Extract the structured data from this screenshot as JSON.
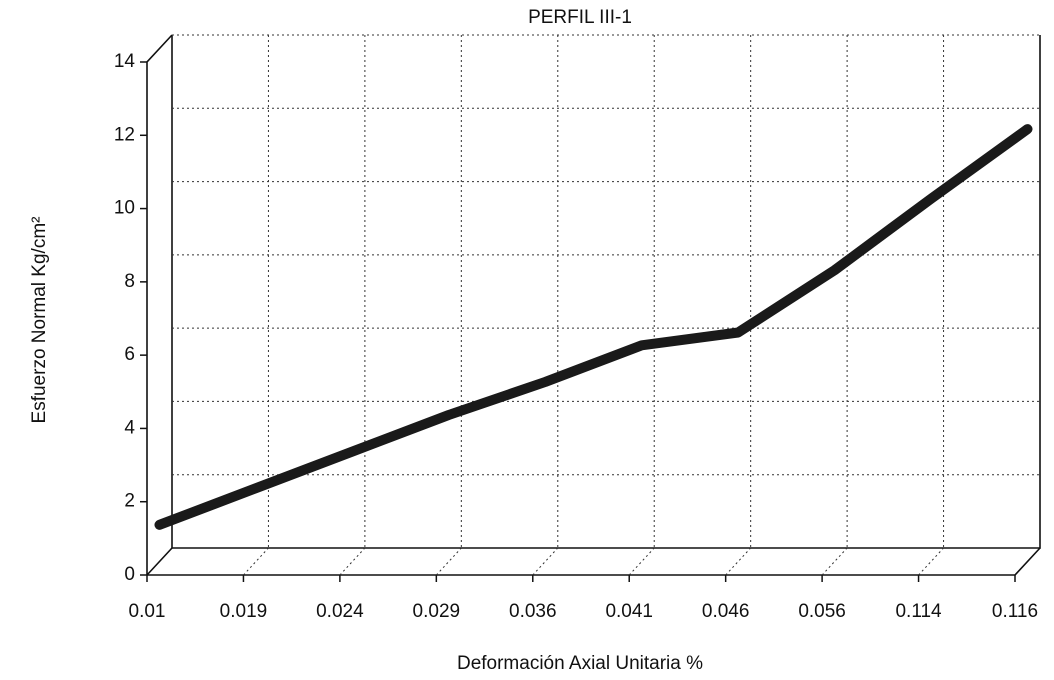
{
  "chart_data": {
    "type": "line",
    "title": "PERFIL III-1",
    "x_label": "Deformación Axial Unitaria  %",
    "y_label": "Esfuerzo Normal Kg/cm²",
    "categories": [
      "0.01",
      "0.019",
      "0.024",
      "0.029",
      "0.036",
      "0.041",
      "0.046",
      "0.056",
      "0.114",
      "0.116"
    ],
    "series": [
      {
        "name": "Esfuerzo",
        "color": "#1a1a1a",
        "values": [
          1.0,
          2.0,
          3.0,
          4.0,
          4.9,
          5.9,
          6.25,
          7.95,
          9.9,
          11.8
        ]
      }
    ],
    "ylim": [
      0,
      14
    ],
    "yticks": [
      0,
      2,
      4,
      6,
      8,
      10,
      12,
      14
    ],
    "grid": true
  }
}
